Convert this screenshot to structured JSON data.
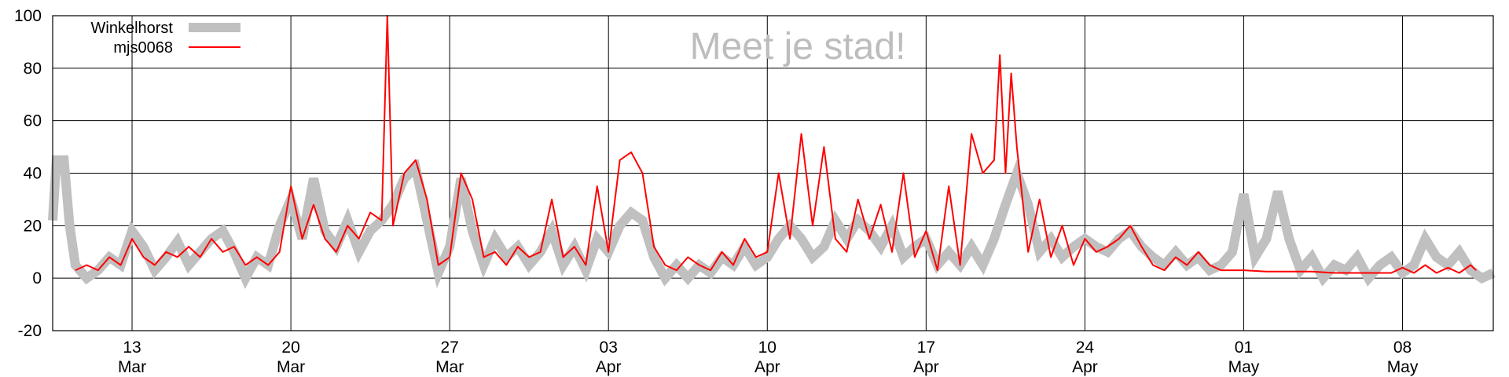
{
  "chart_data": {
    "type": "line",
    "watermark": "Meet je stad!",
    "ylim": [
      -20,
      100
    ],
    "y_ticks": [
      {
        "value": -20,
        "label": "-20"
      },
      {
        "value": 0,
        "label": "0"
      },
      {
        "value": 20,
        "label": "20"
      },
      {
        "value": 40,
        "label": "40"
      },
      {
        "value": 60,
        "label": "60"
      },
      {
        "value": 80,
        "label": "80"
      },
      {
        "value": 100,
        "label": "100"
      }
    ],
    "xlim": [
      "2017-03-09 12:00",
      "2017-05-12 00:00"
    ],
    "x_ticks": [
      {
        "value": "2017-03-13",
        "day": "13",
        "month": "Mar"
      },
      {
        "value": "2017-03-20",
        "day": "20",
        "month": "Mar"
      },
      {
        "value": "2017-03-27",
        "day": "27",
        "month": "Mar"
      },
      {
        "value": "2017-04-03",
        "day": "03",
        "month": "Apr"
      },
      {
        "value": "2017-04-10",
        "day": "10",
        "month": "Apr"
      },
      {
        "value": "2017-04-17",
        "day": "17",
        "month": "Apr"
      },
      {
        "value": "2017-04-24",
        "day": "24",
        "month": "Apr"
      },
      {
        "value": "2017-05-01",
        "day": "01",
        "month": "May"
      },
      {
        "value": "2017-05-08",
        "day": "08",
        "month": "May"
      }
    ],
    "grid": true,
    "legend_position": "top-left",
    "series": [
      {
        "name": "Winkelhorst",
        "color": "#c0c0c0",
        "style": "thick",
        "points": [
          [
            "2017-03-09 12:00",
            22
          ],
          [
            "2017-03-09 16:00",
            45
          ],
          [
            "2017-03-10 00:00",
            45
          ],
          [
            "2017-03-10 06:00",
            20
          ],
          [
            "2017-03-10 12:00",
            5
          ],
          [
            "2017-03-11 00:00",
            0
          ],
          [
            "2017-03-11 12:00",
            3
          ],
          [
            "2017-03-12 00:00",
            8
          ],
          [
            "2017-03-12 12:00",
            5
          ],
          [
            "2017-03-13 00:00",
            18
          ],
          [
            "2017-03-13 12:00",
            12
          ],
          [
            "2017-03-14 00:00",
            3
          ],
          [
            "2017-03-14 12:00",
            8
          ],
          [
            "2017-03-15 00:00",
            14
          ],
          [
            "2017-03-15 12:00",
            5
          ],
          [
            "2017-03-16 00:00",
            10
          ],
          [
            "2017-03-16 12:00",
            15
          ],
          [
            "2017-03-17 00:00",
            18
          ],
          [
            "2017-03-17 12:00",
            10
          ],
          [
            "2017-03-18 00:00",
            0
          ],
          [
            "2017-03-18 12:00",
            8
          ],
          [
            "2017-03-19 00:00",
            5
          ],
          [
            "2017-03-19 12:00",
            20
          ],
          [
            "2017-03-20 00:00",
            30
          ],
          [
            "2017-03-20 12:00",
            15
          ],
          [
            "2017-03-21 00:00",
            38
          ],
          [
            "2017-03-21 12:00",
            18
          ],
          [
            "2017-03-22 00:00",
            12
          ],
          [
            "2017-03-22 12:00",
            22
          ],
          [
            "2017-03-23 00:00",
            10
          ],
          [
            "2017-03-23 12:00",
            18
          ],
          [
            "2017-03-24 00:00",
            22
          ],
          [
            "2017-03-24 12:00",
            28
          ],
          [
            "2017-03-25 00:00",
            38
          ],
          [
            "2017-03-25 12:00",
            42
          ],
          [
            "2017-03-26 00:00",
            22
          ],
          [
            "2017-03-26 12:00",
            2
          ],
          [
            "2017-03-27 00:00",
            12
          ],
          [
            "2017-03-27 12:00",
            38
          ],
          [
            "2017-03-28 00:00",
            18
          ],
          [
            "2017-03-28 12:00",
            5
          ],
          [
            "2017-03-29 00:00",
            15
          ],
          [
            "2017-03-29 12:00",
            8
          ],
          [
            "2017-03-30 00:00",
            12
          ],
          [
            "2017-03-30 12:00",
            5
          ],
          [
            "2017-03-31 00:00",
            10
          ],
          [
            "2017-03-31 12:00",
            18
          ],
          [
            "2017-04-01 00:00",
            5
          ],
          [
            "2017-04-01 12:00",
            12
          ],
          [
            "2017-04-02 00:00",
            3
          ],
          [
            "2017-04-02 12:00",
            15
          ],
          [
            "2017-04-03 00:00",
            10
          ],
          [
            "2017-04-03 12:00",
            20
          ],
          [
            "2017-04-04 00:00",
            25
          ],
          [
            "2017-04-04 12:00",
            22
          ],
          [
            "2017-04-05 00:00",
            8
          ],
          [
            "2017-04-05 12:00",
            0
          ],
          [
            "2017-04-06 00:00",
            5
          ],
          [
            "2017-04-06 12:00",
            0
          ],
          [
            "2017-04-07 00:00",
            5
          ],
          [
            "2017-04-07 12:00",
            2
          ],
          [
            "2017-04-08 00:00",
            8
          ],
          [
            "2017-04-08 12:00",
            5
          ],
          [
            "2017-04-09 00:00",
            12
          ],
          [
            "2017-04-09 12:00",
            5
          ],
          [
            "2017-04-10 00:00",
            8
          ],
          [
            "2017-04-10 12:00",
            15
          ],
          [
            "2017-04-11 00:00",
            20
          ],
          [
            "2017-04-11 12:00",
            15
          ],
          [
            "2017-04-12 00:00",
            8
          ],
          [
            "2017-04-12 12:00",
            12
          ],
          [
            "2017-04-13 00:00",
            22
          ],
          [
            "2017-04-13 12:00",
            15
          ],
          [
            "2017-04-14 00:00",
            22
          ],
          [
            "2017-04-14 12:00",
            18
          ],
          [
            "2017-04-15 00:00",
            12
          ],
          [
            "2017-04-15 12:00",
            20
          ],
          [
            "2017-04-16 00:00",
            8
          ],
          [
            "2017-04-16 12:00",
            12
          ],
          [
            "2017-04-17 00:00",
            15
          ],
          [
            "2017-04-17 12:00",
            5
          ],
          [
            "2017-04-18 00:00",
            10
          ],
          [
            "2017-04-18 12:00",
            5
          ],
          [
            "2017-04-19 00:00",
            12
          ],
          [
            "2017-04-19 12:00",
            5
          ],
          [
            "2017-04-20 00:00",
            15
          ],
          [
            "2017-04-20 12:00",
            28
          ],
          [
            "2017-04-21 00:00",
            40
          ],
          [
            "2017-04-21 12:00",
            28
          ],
          [
            "2017-04-22 00:00",
            10
          ],
          [
            "2017-04-22 12:00",
            15
          ],
          [
            "2017-04-23 00:00",
            8
          ],
          [
            "2017-04-23 12:00",
            12
          ],
          [
            "2017-04-24 00:00",
            15
          ],
          [
            "2017-04-24 12:00",
            12
          ],
          [
            "2017-04-25 00:00",
            10
          ],
          [
            "2017-04-25 12:00",
            15
          ],
          [
            "2017-04-26 00:00",
            18
          ],
          [
            "2017-04-26 12:00",
            12
          ],
          [
            "2017-04-27 00:00",
            8
          ],
          [
            "2017-04-27 12:00",
            5
          ],
          [
            "2017-04-28 00:00",
            10
          ],
          [
            "2017-04-28 12:00",
            5
          ],
          [
            "2017-04-29 00:00",
            8
          ],
          [
            "2017-04-29 12:00",
            3
          ],
          [
            "2017-04-30 00:00",
            5
          ],
          [
            "2017-04-30 12:00",
            10
          ],
          [
            "2017-05-01 00:00",
            32
          ],
          [
            "2017-05-01 12:00",
            8
          ],
          [
            "2017-05-02 00:00",
            15
          ],
          [
            "2017-05-02 12:00",
            33
          ],
          [
            "2017-05-03 00:00",
            15
          ],
          [
            "2017-05-03 12:00",
            3
          ],
          [
            "2017-05-04 00:00",
            8
          ],
          [
            "2017-05-04 12:00",
            0
          ],
          [
            "2017-05-05 00:00",
            5
          ],
          [
            "2017-05-05 12:00",
            3
          ],
          [
            "2017-05-06 00:00",
            8
          ],
          [
            "2017-05-06 12:00",
            0
          ],
          [
            "2017-05-07 00:00",
            5
          ],
          [
            "2017-05-07 12:00",
            8
          ],
          [
            "2017-05-08 00:00",
            2
          ],
          [
            "2017-05-08 12:00",
            5
          ],
          [
            "2017-05-09 00:00",
            15
          ],
          [
            "2017-05-09 12:00",
            8
          ],
          [
            "2017-05-10 00:00",
            5
          ],
          [
            "2017-05-10 12:00",
            10
          ],
          [
            "2017-05-11 00:00",
            3
          ],
          [
            "2017-05-11 12:00",
            0
          ],
          [
            "2017-05-12 00:00",
            2
          ]
        ]
      },
      {
        "name": "mjs0068",
        "color": "#ff0000",
        "style": "thin",
        "points": [
          [
            "2017-03-10 12:00",
            3
          ],
          [
            "2017-03-11 00:00",
            5
          ],
          [
            "2017-03-11 12:00",
            3
          ],
          [
            "2017-03-12 00:00",
            8
          ],
          [
            "2017-03-12 12:00",
            5
          ],
          [
            "2017-03-13 00:00",
            15
          ],
          [
            "2017-03-13 12:00",
            8
          ],
          [
            "2017-03-14 00:00",
            5
          ],
          [
            "2017-03-14 12:00",
            10
          ],
          [
            "2017-03-15 00:00",
            8
          ],
          [
            "2017-03-15 12:00",
            12
          ],
          [
            "2017-03-16 00:00",
            8
          ],
          [
            "2017-03-16 12:00",
            15
          ],
          [
            "2017-03-17 00:00",
            10
          ],
          [
            "2017-03-17 12:00",
            12
          ],
          [
            "2017-03-18 00:00",
            5
          ],
          [
            "2017-03-18 12:00",
            8
          ],
          [
            "2017-03-19 00:00",
            5
          ],
          [
            "2017-03-19 12:00",
            10
          ],
          [
            "2017-03-20 00:00",
            35
          ],
          [
            "2017-03-20 12:00",
            15
          ],
          [
            "2017-03-21 00:00",
            28
          ],
          [
            "2017-03-21 12:00",
            15
          ],
          [
            "2017-03-22 00:00",
            10
          ],
          [
            "2017-03-22 12:00",
            20
          ],
          [
            "2017-03-23 00:00",
            15
          ],
          [
            "2017-03-23 12:00",
            25
          ],
          [
            "2017-03-24 00:00",
            22
          ],
          [
            "2017-03-24 06:00",
            100
          ],
          [
            "2017-03-24 12:00",
            20
          ],
          [
            "2017-03-25 00:00",
            40
          ],
          [
            "2017-03-25 12:00",
            45
          ],
          [
            "2017-03-26 00:00",
            30
          ],
          [
            "2017-03-26 12:00",
            5
          ],
          [
            "2017-03-27 00:00",
            8
          ],
          [
            "2017-03-27 12:00",
            40
          ],
          [
            "2017-03-28 00:00",
            30
          ],
          [
            "2017-03-28 12:00",
            8
          ],
          [
            "2017-03-29 00:00",
            10
          ],
          [
            "2017-03-29 12:00",
            5
          ],
          [
            "2017-03-30 00:00",
            12
          ],
          [
            "2017-03-30 12:00",
            8
          ],
          [
            "2017-03-31 00:00",
            10
          ],
          [
            "2017-03-31 12:00",
            30
          ],
          [
            "2017-04-01 00:00",
            8
          ],
          [
            "2017-04-01 12:00",
            12
          ],
          [
            "2017-04-02 00:00",
            5
          ],
          [
            "2017-04-02 12:00",
            35
          ],
          [
            "2017-04-03 00:00",
            10
          ],
          [
            "2017-04-03 12:00",
            45
          ],
          [
            "2017-04-04 00:00",
            48
          ],
          [
            "2017-04-04 12:00",
            40
          ],
          [
            "2017-04-05 00:00",
            12
          ],
          [
            "2017-04-05 12:00",
            5
          ],
          [
            "2017-04-06 00:00",
            3
          ],
          [
            "2017-04-06 12:00",
            8
          ],
          [
            "2017-04-07 00:00",
            5
          ],
          [
            "2017-04-07 12:00",
            3
          ],
          [
            "2017-04-08 00:00",
            10
          ],
          [
            "2017-04-08 12:00",
            5
          ],
          [
            "2017-04-09 00:00",
            15
          ],
          [
            "2017-04-09 12:00",
            8
          ],
          [
            "2017-04-10 00:00",
            10
          ],
          [
            "2017-04-10 12:00",
            40
          ],
          [
            "2017-04-11 00:00",
            15
          ],
          [
            "2017-04-11 12:00",
            55
          ],
          [
            "2017-04-12 00:00",
            20
          ],
          [
            "2017-04-12 12:00",
            50
          ],
          [
            "2017-04-13 00:00",
            15
          ],
          [
            "2017-04-13 12:00",
            10
          ],
          [
            "2017-04-14 00:00",
            30
          ],
          [
            "2017-04-14 12:00",
            15
          ],
          [
            "2017-04-15 00:00",
            28
          ],
          [
            "2017-04-15 12:00",
            10
          ],
          [
            "2017-04-16 00:00",
            40
          ],
          [
            "2017-04-16 12:00",
            8
          ],
          [
            "2017-04-17 00:00",
            18
          ],
          [
            "2017-04-17 12:00",
            3
          ],
          [
            "2017-04-18 00:00",
            35
          ],
          [
            "2017-04-18 12:00",
            5
          ],
          [
            "2017-04-19 00:00",
            55
          ],
          [
            "2017-04-19 12:00",
            40
          ],
          [
            "2017-04-20 00:00",
            45
          ],
          [
            "2017-04-20 06:00",
            85
          ],
          [
            "2017-04-20 12:00",
            40
          ],
          [
            "2017-04-20 18:00",
            78
          ],
          [
            "2017-04-21 00:00",
            50
          ],
          [
            "2017-04-21 12:00",
            10
          ],
          [
            "2017-04-22 00:00",
            30
          ],
          [
            "2017-04-22 12:00",
            8
          ],
          [
            "2017-04-23 00:00",
            20
          ],
          [
            "2017-04-23 12:00",
            5
          ],
          [
            "2017-04-24 00:00",
            15
          ],
          [
            "2017-04-24 12:00",
            10
          ],
          [
            "2017-04-25 00:00",
            12
          ],
          [
            "2017-04-25 12:00",
            15
          ],
          [
            "2017-04-26 00:00",
            20
          ],
          [
            "2017-04-26 12:00",
            12
          ],
          [
            "2017-04-27 00:00",
            5
          ],
          [
            "2017-04-27 12:00",
            3
          ],
          [
            "2017-04-28 00:00",
            8
          ],
          [
            "2017-04-28 12:00",
            5
          ],
          [
            "2017-04-29 00:00",
            10
          ],
          [
            "2017-04-29 12:00",
            5
          ],
          [
            "2017-04-30 00:00",
            3
          ],
          [
            "2017-04-30 12:00",
            3
          ],
          [
            "2017-05-01 00:00",
            3
          ],
          [
            "2017-05-02 00:00",
            2.5
          ],
          [
            "2017-05-03 00:00",
            2.5
          ],
          [
            "2017-05-04 00:00",
            2.5
          ],
          [
            "2017-05-05 00:00",
            2
          ],
          [
            "2017-05-06 00:00",
            2
          ],
          [
            "2017-05-07 00:00",
            2
          ],
          [
            "2017-05-07 12:00",
            2
          ],
          [
            "2017-05-08 00:00",
            4
          ],
          [
            "2017-05-08 12:00",
            2
          ],
          [
            "2017-05-09 00:00",
            5
          ],
          [
            "2017-05-09 12:00",
            2
          ],
          [
            "2017-05-10 00:00",
            4
          ],
          [
            "2017-05-10 12:00",
            2
          ],
          [
            "2017-05-11 00:00",
            5
          ],
          [
            "2017-05-11 06:00",
            3
          ]
        ]
      }
    ]
  }
}
